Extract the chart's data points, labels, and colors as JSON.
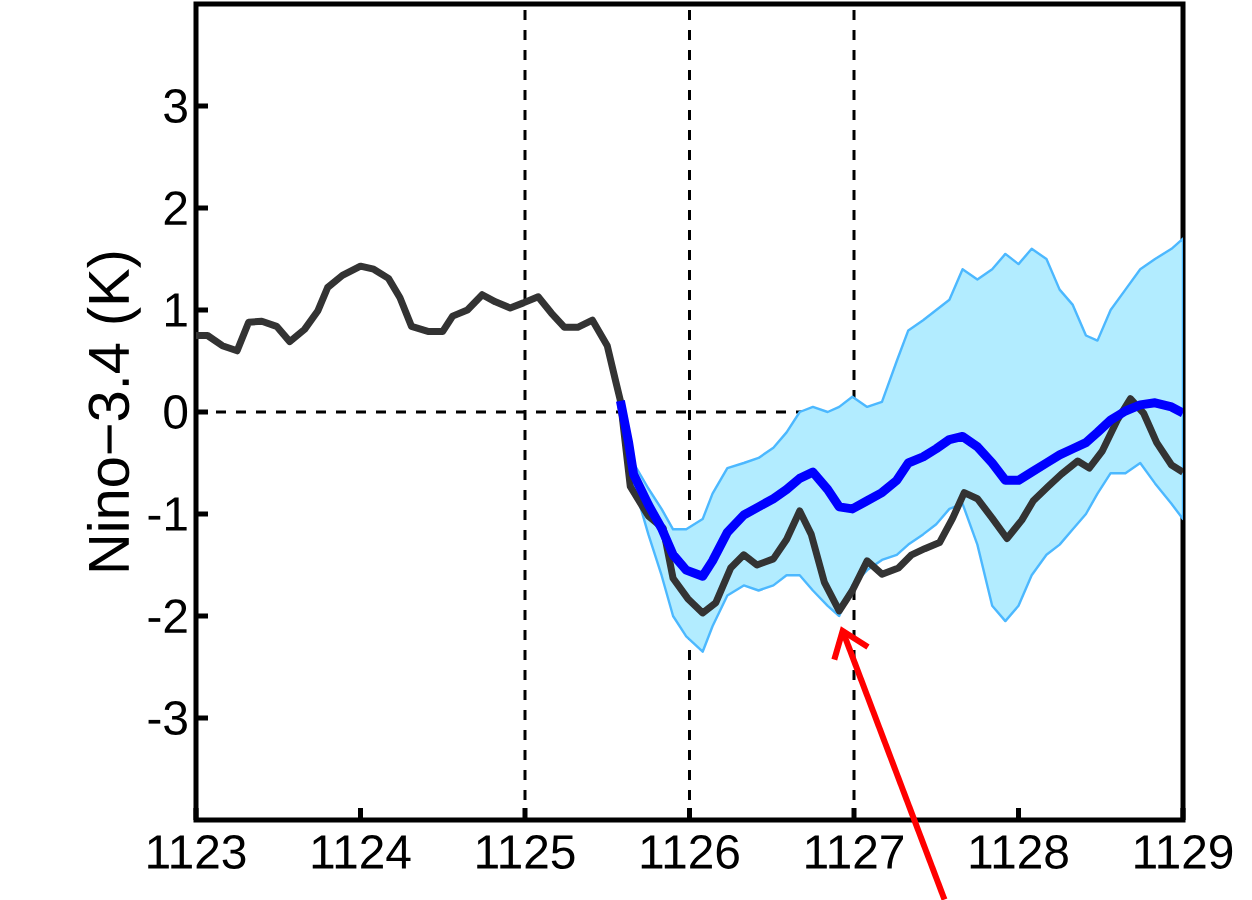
{
  "chart_data": {
    "type": "line",
    "ylabel": "Nino−3.4 (K)",
    "xlim": [
      1123,
      1129
    ],
    "ylim": [
      -4,
      4
    ],
    "xticks": [
      1123,
      1124,
      1125,
      1126,
      1127,
      1128,
      1129
    ],
    "yticks": [
      -3,
      -2,
      -1,
      0,
      1,
      2,
      3
    ],
    "grid": false,
    "ref_lines": [
      {
        "axis": "x",
        "value": 1125,
        "color": "#000000",
        "line_style": "dashed"
      },
      {
        "axis": "x",
        "value": 1126,
        "color": "#000000",
        "line_style": "dashed"
      },
      {
        "axis": "x",
        "value": 1127,
        "color": "#000000",
        "line_style": "dashed"
      },
      {
        "axis": "y",
        "value": 0,
        "color": "#000000",
        "line_style": "dashed"
      }
    ],
    "series": [
      {
        "color": "#333333",
        "x": [
          1123.0,
          1123.07,
          1123.16,
          1123.25,
          1123.32,
          1123.4,
          1123.49,
          1123.57,
          1123.66,
          1123.74,
          1123.8,
          1123.89,
          1124.0,
          1124.08,
          1124.17,
          1124.24,
          1124.31,
          1124.41,
          1124.5,
          1124.56,
          1124.65,
          1124.74,
          1124.82,
          1124.91,
          1124.99,
          1125.08,
          1125.16,
          1125.24,
          1125.32,
          1125.41,
          1125.5,
          1125.55,
          1125.58,
          1125.64,
          1125.75,
          1125.84,
          1125.9,
          1125.99,
          1126.08,
          1126.16,
          1126.25,
          1126.33,
          1126.41,
          1126.51,
          1126.59,
          1126.67,
          1126.74,
          1126.82,
          1126.91,
          1126.99,
          1127.08,
          1127.17,
          1127.27,
          1127.35,
          1127.43,
          1127.52,
          1127.6,
          1127.67,
          1127.75,
          1127.84,
          1127.93,
          1128.02,
          1128.09,
          1128.18,
          1128.26,
          1128.36,
          1128.43,
          1128.51,
          1128.6,
          1128.68,
          1128.76,
          1128.84,
          1128.93,
          1129.0
        ],
        "values": [
          0.75,
          0.75,
          0.65,
          0.6,
          0.88,
          0.89,
          0.84,
          0.69,
          0.81,
          0.99,
          1.22,
          1.34,
          1.43,
          1.4,
          1.31,
          1.12,
          0.84,
          0.79,
          0.79,
          0.94,
          1.0,
          1.15,
          1.08,
          1.02,
          1.07,
          1.13,
          0.97,
          0.83,
          0.83,
          0.9,
          0.65,
          0.31,
          0.11,
          -0.73,
          -1.02,
          -1.14,
          -1.63,
          -1.83,
          -1.97,
          -1.87,
          -1.53,
          -1.4,
          -1.5,
          -1.44,
          -1.25,
          -0.97,
          -1.2,
          -1.67,
          -1.95,
          -1.75,
          -1.46,
          -1.59,
          -1.53,
          -1.4,
          -1.34,
          -1.28,
          -1.04,
          -0.79,
          -0.85,
          -1.04,
          -1.24,
          -1.06,
          -0.87,
          -0.73,
          -0.61,
          -0.48,
          -0.55,
          -0.38,
          -0.08,
          0.13,
          -0.01,
          -0.3,
          -0.52,
          -0.59
        ]
      },
      {
        "color": "#0000ff",
        "x": [
          1125.58,
          1125.63,
          1125.66,
          1125.75,
          1125.83,
          1125.9,
          1125.98,
          1126.08,
          1126.14,
          1126.23,
          1126.33,
          1126.42,
          1126.51,
          1126.59,
          1126.67,
          1126.75,
          1126.84,
          1126.91,
          1126.99,
          1127.08,
          1127.17,
          1127.26,
          1127.33,
          1127.42,
          1127.5,
          1127.58,
          1127.66,
          1127.75,
          1127.84,
          1127.92,
          1128.0,
          1128.08,
          1128.17,
          1128.25,
          1128.33,
          1128.41,
          1128.48,
          1128.56,
          1128.65,
          1128.74,
          1128.83,
          1128.93,
          1129.0
        ],
        "values": [
          0.11,
          -0.3,
          -0.61,
          -0.91,
          -1.14,
          -1.4,
          -1.55,
          -1.61,
          -1.46,
          -1.18,
          -1.01,
          -0.93,
          -0.85,
          -0.76,
          -0.65,
          -0.59,
          -0.76,
          -0.93,
          -0.95,
          -0.87,
          -0.79,
          -0.67,
          -0.5,
          -0.44,
          -0.36,
          -0.27,
          -0.24,
          -0.34,
          -0.5,
          -0.67,
          -0.67,
          -0.59,
          -0.5,
          -0.42,
          -0.36,
          -0.3,
          -0.2,
          -0.08,
          0.01,
          0.07,
          0.09,
          0.05,
          -0.01
        ],
        "lower": [
          0.11,
          -0.4,
          -0.7,
          -1.2,
          -1.6,
          -2.0,
          -2.2,
          -2.35,
          -2.1,
          -1.8,
          -1.7,
          -1.75,
          -1.7,
          -1.6,
          -1.6,
          -1.75,
          -1.9,
          -2.0,
          -1.7,
          -1.55,
          -1.45,
          -1.4,
          -1.3,
          -1.2,
          -1.1,
          -0.95,
          -0.9,
          -1.3,
          -1.9,
          -2.05,
          -1.9,
          -1.6,
          -1.4,
          -1.3,
          -1.15,
          -1.0,
          -0.8,
          -0.6,
          -0.6,
          -0.5,
          -0.7,
          -0.9,
          -1.05
        ],
        "upper": [
          0.11,
          -0.3,
          -0.5,
          -0.75,
          -0.95,
          -1.15,
          -1.15,
          -1.05,
          -0.8,
          -0.55,
          -0.5,
          -0.45,
          -0.35,
          -0.2,
          0.0,
          0.05,
          0.0,
          0.05,
          0.15,
          0.05,
          0.1,
          0.5,
          0.8,
          0.9,
          1.0,
          1.1,
          1.4,
          1.3,
          1.4,
          1.55,
          1.45,
          1.6,
          1.5,
          1.2,
          1.05,
          0.75,
          0.7,
          1.0,
          1.2,
          1.4,
          1.5,
          1.6,
          1.7
        ]
      }
    ]
  }
}
